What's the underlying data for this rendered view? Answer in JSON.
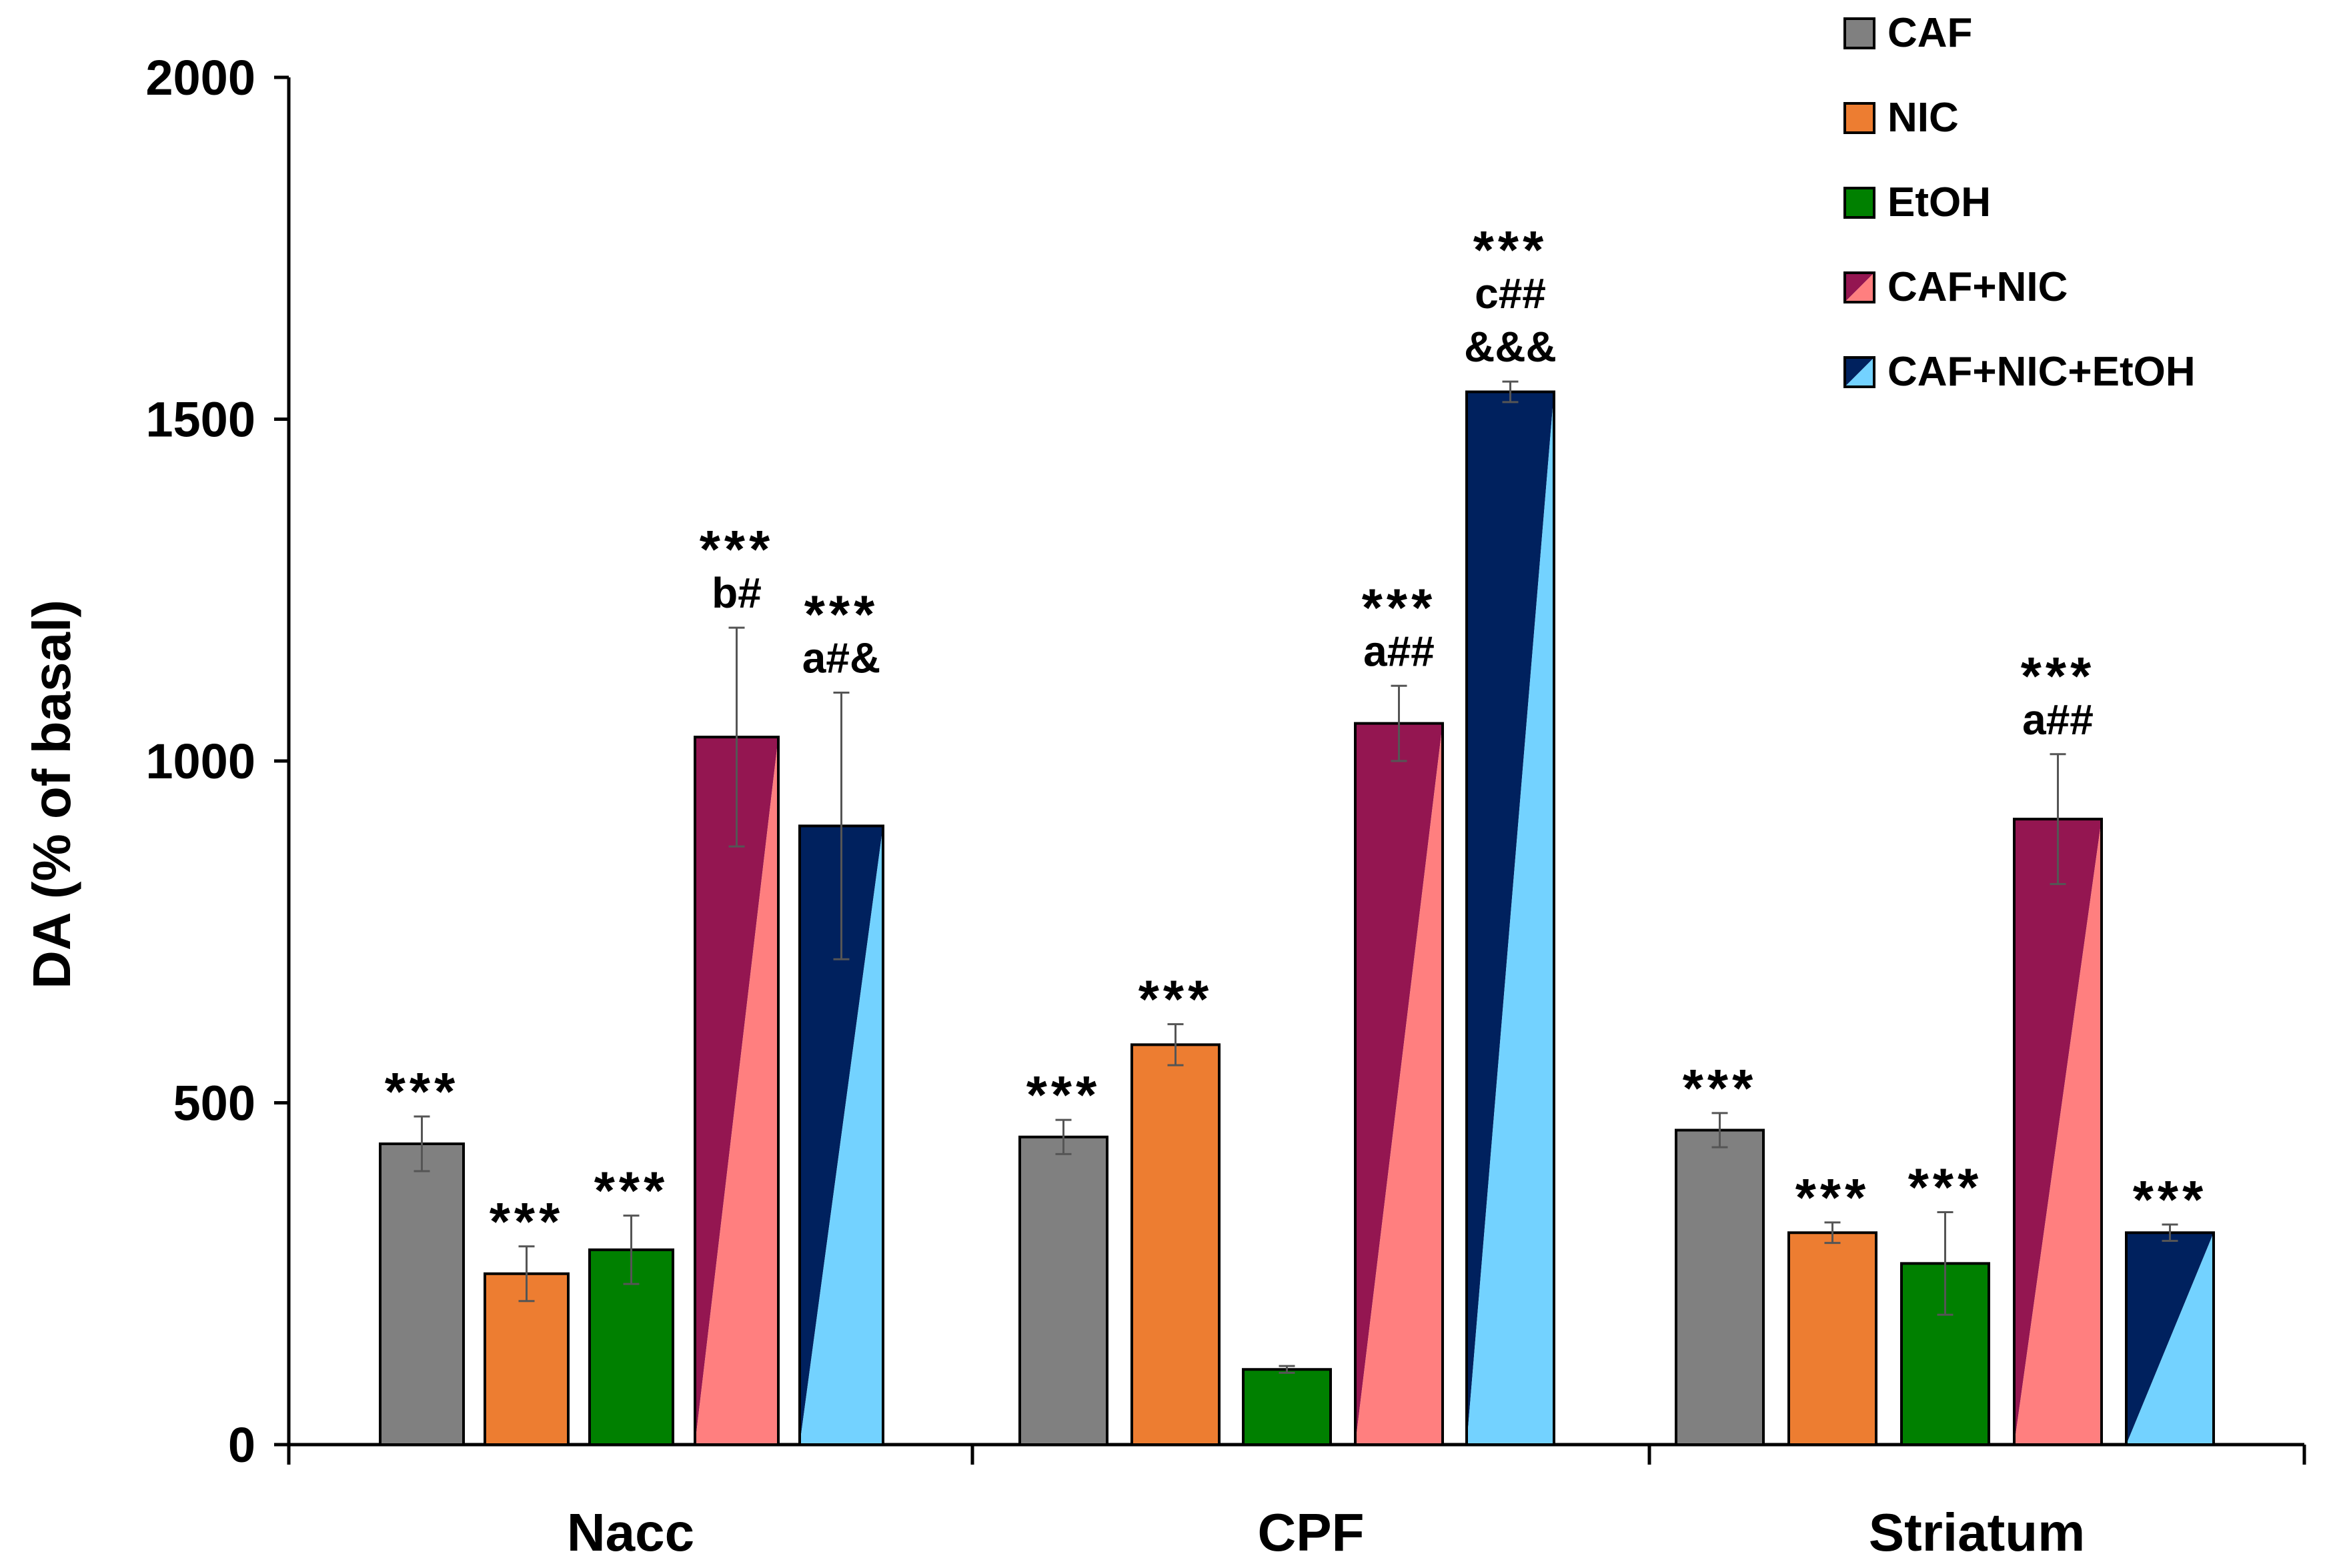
{
  "chart_data": {
    "type": "bar",
    "title": "",
    "xlabel": "",
    "ylabel": "DA (% of basal)",
    "ylim": [
      0,
      2000
    ],
    "yticks": [
      0,
      500,
      1000,
      1500,
      2000
    ],
    "grid": false,
    "legend_position": "top-right",
    "series_names": [
      "CAF",
      "NIC",
      "EtOH",
      "CAF+NIC",
      "CAF+NIC+EtOH"
    ],
    "colors": {
      "CAF": "#808080",
      "NIC": "#ED7D31",
      "EtOH": "#008000",
      "CAF+NIC_dark": "#941651",
      "CAF+NIC_light": "#FF7F7F",
      "CAF+NIC+EtOH_dark": "#00215E",
      "CAF+NIC+EtOH_light": "#73D2FF"
    },
    "groups": [
      {
        "name": "Nacc",
        "bars": [
          {
            "series": "CAF",
            "value": 440,
            "error": 40,
            "annotation": [
              "***"
            ]
          },
          {
            "series": "NIC",
            "value": 250,
            "error": 40,
            "annotation": [
              "***"
            ]
          },
          {
            "series": "EtOH",
            "value": 285,
            "error": 50,
            "annotation": [
              "***"
            ]
          },
          {
            "series": "CAF+NIC",
            "value": 1035,
            "error": 160,
            "annotation": [
              "***",
              "b#"
            ]
          },
          {
            "series": "CAF+NIC+EtOH",
            "value": 905,
            "error": 195,
            "annotation": [
              "***",
              "a#&"
            ]
          }
        ]
      },
      {
        "name": "CPF",
        "bars": [
          {
            "series": "CAF",
            "value": 450,
            "error": 25,
            "annotation": [
              "***"
            ]
          },
          {
            "series": "NIC",
            "value": 585,
            "error": 30,
            "annotation": [
              "***"
            ]
          },
          {
            "series": "EtOH",
            "value": 110,
            "error": 5,
            "annotation": []
          },
          {
            "series": "CAF+NIC",
            "value": 1055,
            "error": 55,
            "annotation": [
              "***",
              "a##"
            ]
          },
          {
            "series": "CAF+NIC+EtOH",
            "value": 1540,
            "error": 15,
            "annotation": [
              "***",
              "c##",
              "&&&"
            ]
          }
        ]
      },
      {
        "name": "Striatum",
        "bars": [
          {
            "series": "CAF",
            "value": 460,
            "error": 25,
            "annotation": [
              "***"
            ]
          },
          {
            "series": "NIC",
            "value": 310,
            "error": 15,
            "annotation": [
              "***"
            ]
          },
          {
            "series": "EtOH",
            "value": 265,
            "error": 75,
            "annotation": [
              "***"
            ]
          },
          {
            "series": "CAF+NIC",
            "value": 915,
            "error": 95,
            "annotation": [
              "***",
              "a##"
            ]
          },
          {
            "series": "CAF+NIC+EtOH",
            "value": 310,
            "error": 12,
            "annotation": [
              "***"
            ]
          }
        ]
      }
    ]
  }
}
